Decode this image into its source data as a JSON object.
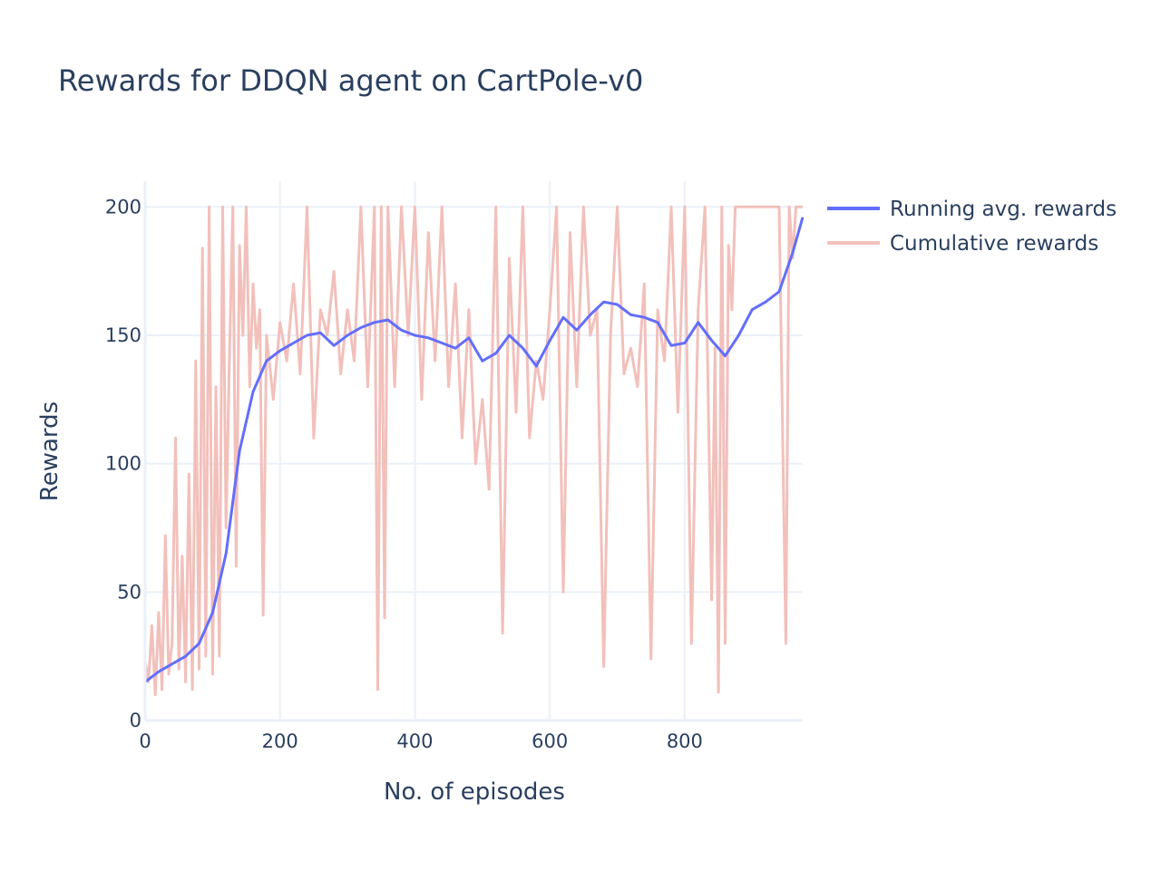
{
  "chart_data": {
    "type": "line",
    "title": "Rewards for DDQN agent on CartPole-v0",
    "xlabel": "No. of episodes",
    "ylabel": "Rewards",
    "xlim": [
      0,
      975
    ],
    "ylim": [
      0,
      210
    ],
    "xticks": [
      0,
      200,
      400,
      600,
      800
    ],
    "yticks": [
      0,
      50,
      100,
      150,
      200
    ],
    "grid": true,
    "legend_position": "top-right",
    "series": [
      {
        "name": "Running avg. rewards",
        "color": "#636efa",
        "x": [
          0,
          20,
          40,
          60,
          80,
          100,
          120,
          140,
          160,
          180,
          200,
          220,
          240,
          260,
          280,
          300,
          320,
          340,
          360,
          380,
          400,
          420,
          440,
          460,
          480,
          500,
          520,
          540,
          560,
          580,
          600,
          620,
          640,
          660,
          680,
          700,
          720,
          740,
          760,
          780,
          800,
          820,
          840,
          860,
          880,
          900,
          920,
          940,
          960,
          975
        ],
        "y": [
          15,
          19,
          22,
          25,
          30,
          42,
          65,
          105,
          128,
          140,
          144,
          147,
          150,
          151,
          146,
          150,
          153,
          155,
          156,
          152,
          150,
          149,
          147,
          145,
          149,
          140,
          143,
          150,
          145,
          138,
          148,
          157,
          152,
          158,
          163,
          162,
          158,
          157,
          155,
          146,
          147,
          155,
          148,
          142,
          150,
          160,
          163,
          167,
          182,
          196
        ]
      },
      {
        "name": "Cumulative rewards",
        "color": "#f2c0bb",
        "x": [
          0,
          5,
          10,
          15,
          20,
          25,
          30,
          35,
          40,
          45,
          50,
          55,
          60,
          65,
          70,
          75,
          80,
          85,
          90,
          95,
          100,
          105,
          110,
          115,
          120,
          125,
          130,
          135,
          140,
          145,
          150,
          155,
          160,
          165,
          170,
          175,
          180,
          190,
          200,
          210,
          220,
          230,
          240,
          250,
          260,
          270,
          280,
          290,
          300,
          310,
          320,
          330,
          340,
          345,
          350,
          355,
          360,
          370,
          380,
          390,
          400,
          410,
          420,
          430,
          440,
          450,
          460,
          470,
          480,
          490,
          500,
          510,
          520,
          530,
          540,
          550,
          560,
          570,
          580,
          590,
          600,
          610,
          620,
          630,
          640,
          650,
          660,
          670,
          680,
          690,
          700,
          710,
          720,
          730,
          740,
          750,
          760,
          770,
          780,
          790,
          800,
          810,
          820,
          830,
          840,
          845,
          850,
          855,
          860,
          865,
          870,
          875,
          880,
          890,
          900,
          910,
          920,
          930,
          940,
          950,
          955,
          960,
          965,
          970,
          975
        ],
        "y": [
          23,
          15,
          37,
          10,
          42,
          12,
          72,
          18,
          30,
          110,
          20,
          64,
          15,
          96,
          12,
          140,
          20,
          184,
          25,
          200,
          18,
          130,
          25,
          200,
          75,
          140,
          200,
          60,
          185,
          150,
          200,
          130,
          170,
          145,
          160,
          41,
          150,
          125,
          155,
          140,
          170,
          135,
          200,
          110,
          160,
          150,
          175,
          135,
          160,
          140,
          200,
          130,
          200,
          12,
          200,
          40,
          200,
          130,
          200,
          150,
          200,
          125,
          190,
          140,
          200,
          130,
          170,
          110,
          160,
          100,
          125,
          90,
          200,
          34,
          180,
          120,
          200,
          110,
          140,
          125,
          160,
          200,
          50,
          190,
          130,
          200,
          150,
          160,
          21,
          150,
          200,
          135,
          145,
          130,
          170,
          24,
          160,
          140,
          200,
          120,
          200,
          30,
          160,
          200,
          47,
          145,
          11,
          200,
          30,
          185,
          160,
          200,
          200,
          200,
          200,
          200,
          200,
          200,
          200,
          30,
          200,
          180,
          200,
          200,
          200
        ]
      }
    ]
  }
}
